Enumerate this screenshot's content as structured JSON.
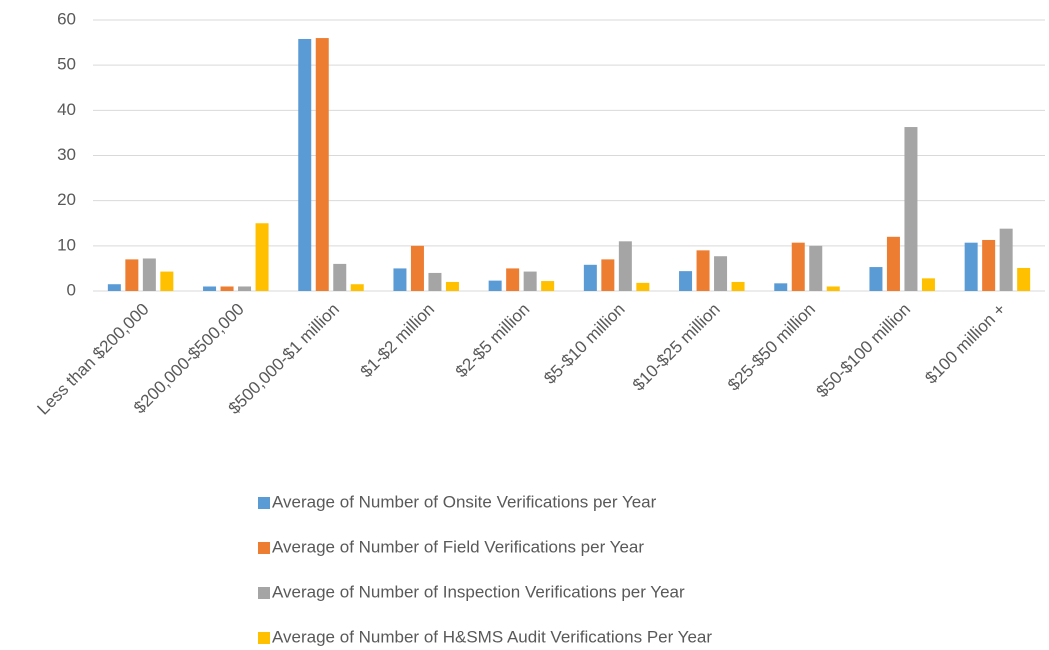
{
  "chart_data": {
    "type": "bar",
    "categories": [
      "Less than $200,000",
      "$200,000-$500,000",
      "$500,000-$1 million",
      "$1-$2 million",
      "$2-$5 million",
      "$5-$10 million",
      "$10-$25 million",
      "$25-$50 million",
      "$50-$100 million",
      "$100 million +"
    ],
    "series": [
      {
        "name": "Average of Number of Onsite Verifications per Year",
        "color": "#5b9bd5",
        "values": [
          1.5,
          1,
          55.8,
          5,
          2.3,
          5.8,
          4.4,
          1.7,
          5.3,
          10.7
        ]
      },
      {
        "name": "Average of Number of Field Verifications per Year",
        "color": "#ed7d31",
        "values": [
          7,
          1,
          56,
          10,
          5,
          7,
          9,
          10.7,
          12,
          11.3
        ]
      },
      {
        "name": "Average of Number of Inspection Verifications per Year",
        "color": "#a5a5a5",
        "values": [
          7.2,
          1,
          6,
          4,
          4.3,
          11,
          7.7,
          10,
          36.3,
          13.8
        ]
      },
      {
        "name": "Average of Number of H&SMS Audit Verifications Per Year",
        "color": "#ffc000",
        "values": [
          4.3,
          15,
          1.5,
          2,
          2.2,
          1.8,
          2,
          1,
          2.8,
          5.1
        ]
      }
    ],
    "ylim": [
      0,
      60
    ],
    "yticks": [
      0,
      10,
      20,
      30,
      40,
      50,
      60
    ],
    "grid": true,
    "legend": "bottom"
  }
}
